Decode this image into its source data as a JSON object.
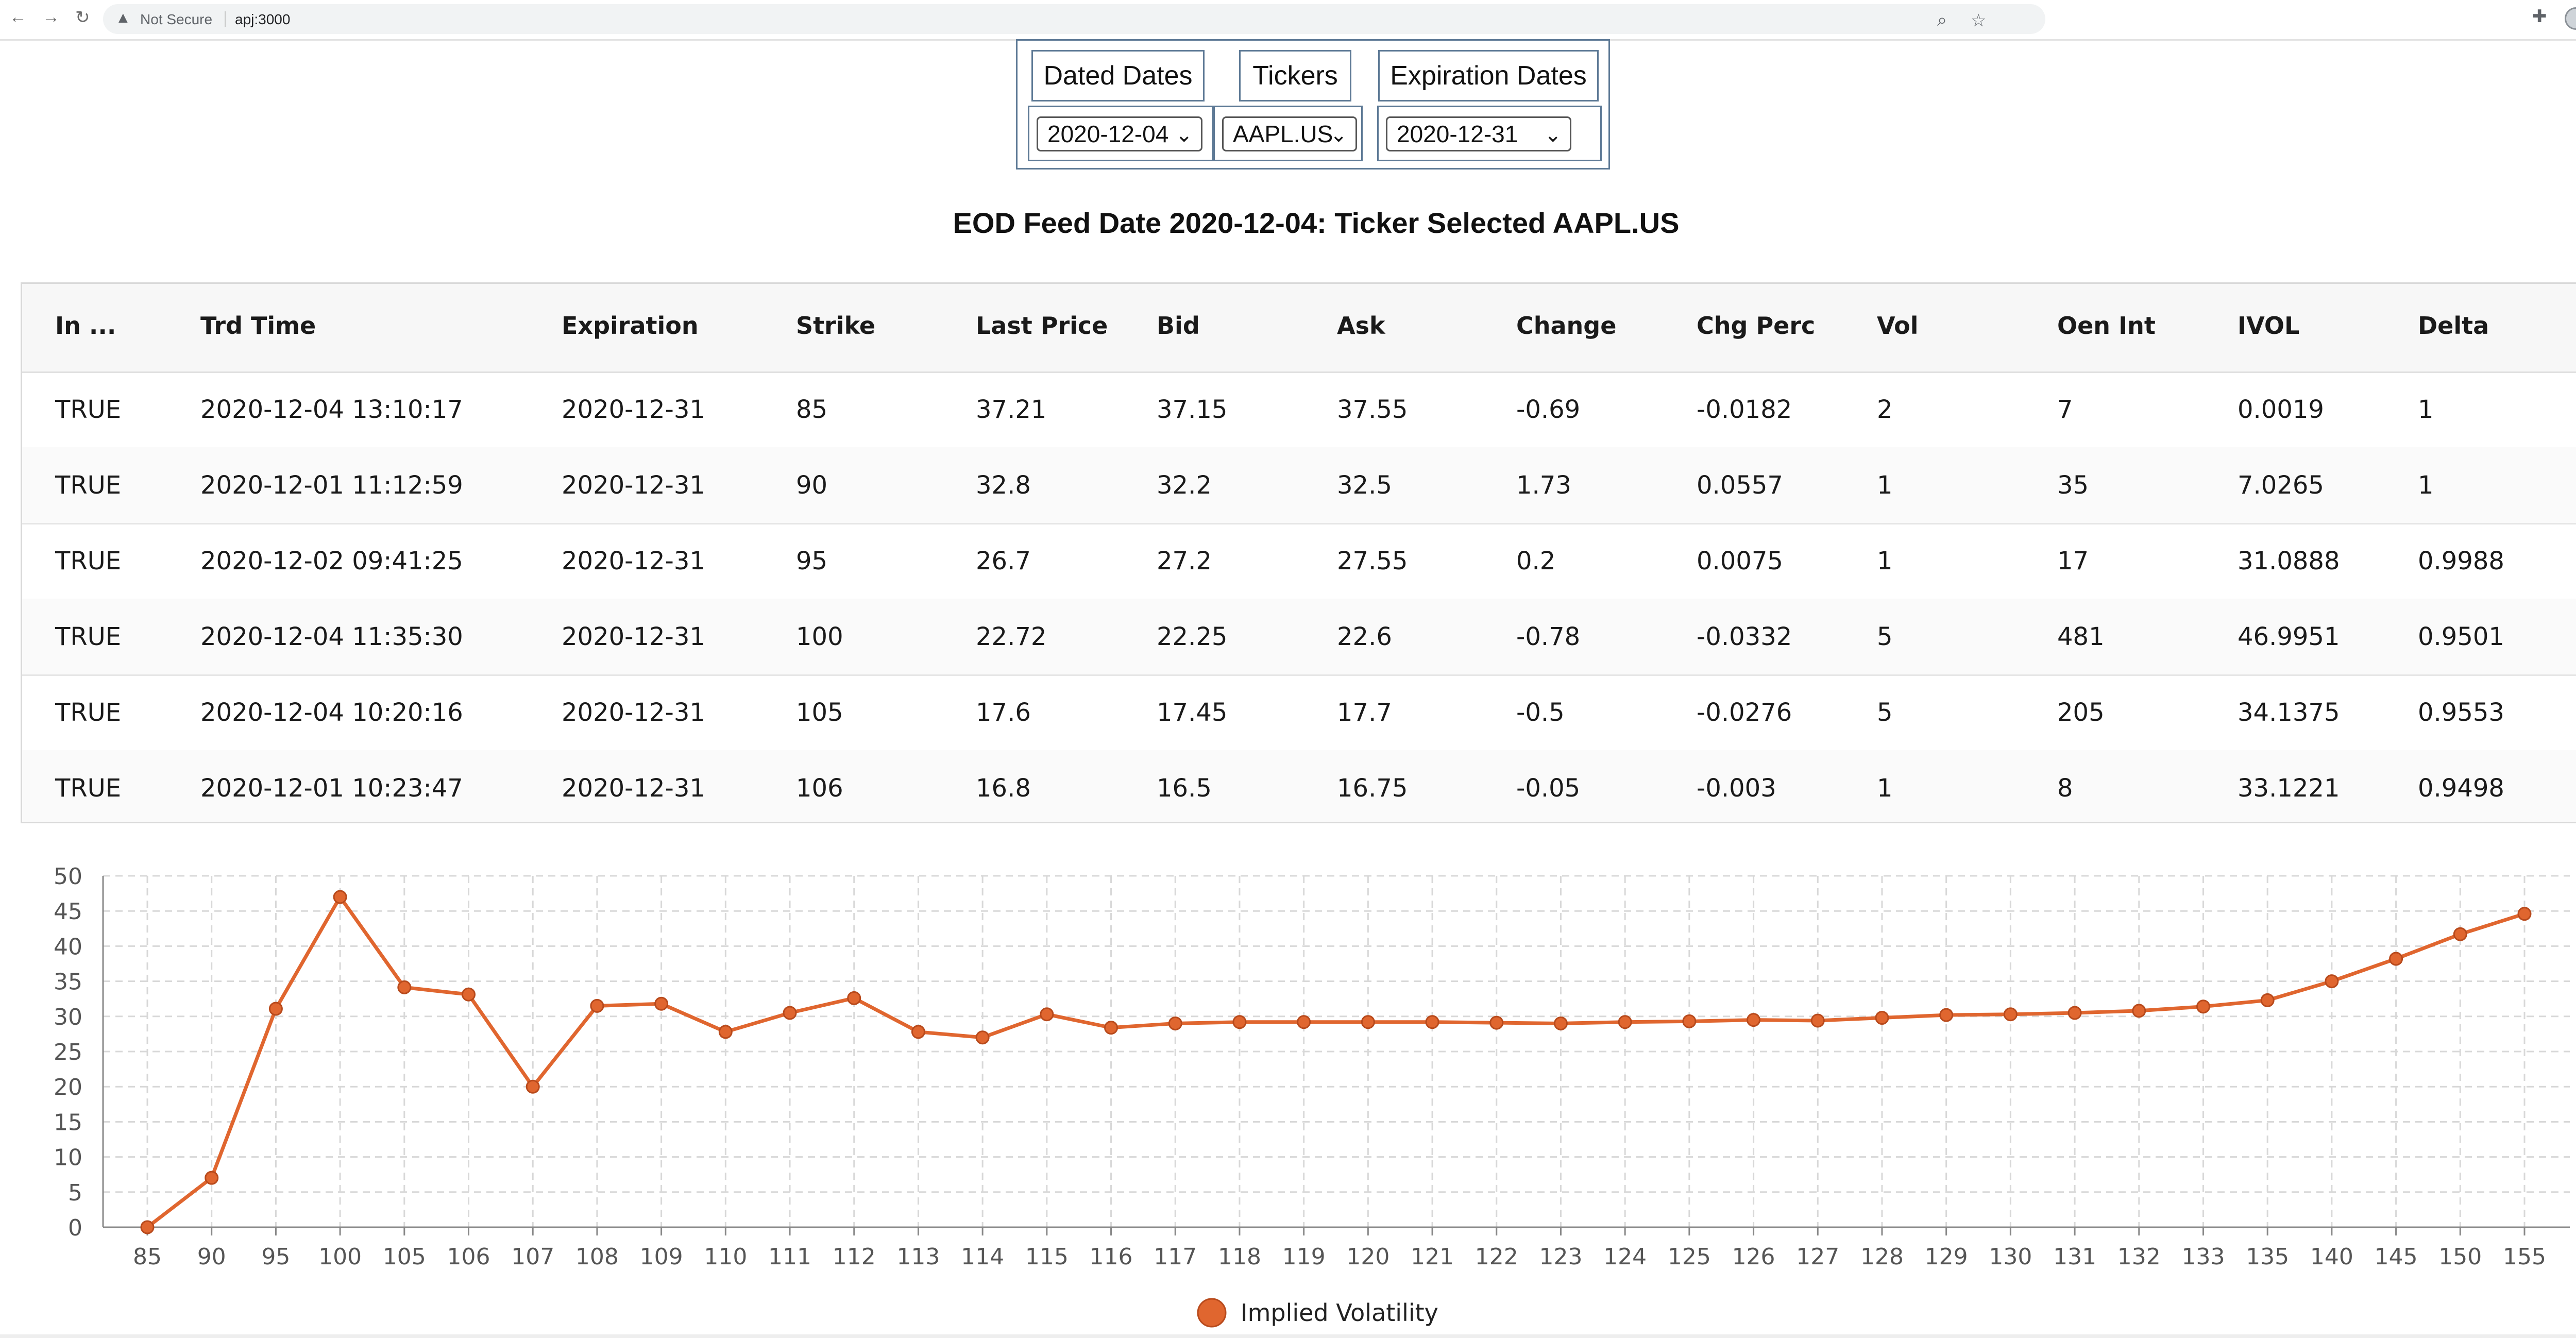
{
  "browser": {
    "nav_back": "←",
    "nav_forward": "→",
    "nav_reload": "↻",
    "security_icon": "▲",
    "security_label": "Not Secure",
    "url": "apj:3000",
    "right_icons": [
      "zoom-icon",
      "star-icon",
      "extensions-icon",
      "profile-icon",
      "menu-icon"
    ],
    "zoom_glyph": "⌕",
    "star_glyph": "☆",
    "ext_glyph": "✚",
    "menu_glyph": "⋮"
  },
  "selectors": {
    "dated_dates_label": "Dated Dates",
    "tickers_label": "Tickers",
    "expiration_dates_label": "Expiration Dates",
    "dated_date_value": "2020-12-04",
    "ticker_value": "AAPL.US",
    "expiration_date_value": "2020-12-31",
    "chevron": "⌄"
  },
  "title": "EOD Feed Date 2020-12-04: Ticker Selected AAPL.US",
  "table": {
    "columns": [
      "In ...",
      "Trd Time",
      "Expiration",
      "Strike",
      "Last Price",
      "Bid",
      "Ask",
      "Change",
      "Chg Perc",
      "Vol",
      "Oen Int",
      "IVOL",
      "Delta",
      "("
    ],
    "rows": [
      [
        "TRUE",
        "2020-12-04 13:10:17",
        "2020-12-31",
        "85",
        "37.21",
        "37.15",
        "37.55",
        "-0.69",
        "-0.0182",
        "2",
        "7",
        "0.0019",
        "1",
        "("
      ],
      [
        "TRUE",
        "2020-12-01 11:12:59",
        "2020-12-31",
        "90",
        "32.8",
        "32.2",
        "32.5",
        "1.73",
        "0.0557",
        "1",
        "35",
        "7.0265",
        "1",
        "("
      ],
      [
        "TRUE",
        "2020-12-02 09:41:25",
        "2020-12-31",
        "95",
        "26.7",
        "27.2",
        "27.55",
        "0.2",
        "0.0075",
        "1",
        "17",
        "31.0888",
        "0.9988",
        "("
      ],
      [
        "TRUE",
        "2020-12-04 11:35:30",
        "2020-12-31",
        "100",
        "22.72",
        "22.25",
        "22.6",
        "-0.78",
        "-0.0332",
        "5",
        "481",
        "46.9951",
        "0.9501",
        "("
      ],
      [
        "TRUE",
        "2020-12-04 10:20:16",
        "2020-12-31",
        "105",
        "17.6",
        "17.45",
        "17.7",
        "-0.5",
        "-0.0276",
        "5",
        "205",
        "34.1375",
        "0.9553",
        "("
      ],
      [
        "TRUE",
        "2020-12-01 10:23:47",
        "2020-12-31",
        "106",
        "16.8",
        "16.5",
        "16.75",
        "-0.05",
        "-0.003",
        "1",
        "8",
        "33.1221",
        "0.9498",
        "("
      ]
    ]
  },
  "chart_data": {
    "type": "line",
    "categories": [
      "85",
      "90",
      "95",
      "100",
      "105",
      "106",
      "107",
      "108",
      "109",
      "110",
      "111",
      "112",
      "113",
      "114",
      "115",
      "116",
      "117",
      "118",
      "119",
      "120",
      "121",
      "122",
      "123",
      "124",
      "125",
      "126",
      "127",
      "128",
      "129",
      "130",
      "131",
      "132",
      "133",
      "135",
      "140",
      "145",
      "150",
      "155"
    ],
    "series": [
      {
        "name": "Implied Volatility",
        "color": "#e0662f",
        "values": [
          0.0019,
          7.0265,
          31.0888,
          46.9951,
          34.1375,
          33.1221,
          20,
          31.5,
          31.8,
          27.8,
          30.5,
          32.6,
          27.8,
          27,
          30.3,
          28.4,
          29,
          29.2,
          29.2,
          29.2,
          29.2,
          29.1,
          29,
          29.2,
          29.3,
          29.5,
          29.4,
          29.8,
          30.2,
          30.3,
          30.5,
          30.8,
          31.4,
          32.3,
          35,
          38.2,
          41.7,
          44.6
        ]
      }
    ],
    "yticks": [
      0,
      5,
      10,
      15,
      20,
      25,
      30,
      35,
      40,
      45,
      50
    ],
    "ylim": [
      0,
      50
    ],
    "grid": true,
    "legend_position": "bottom"
  }
}
